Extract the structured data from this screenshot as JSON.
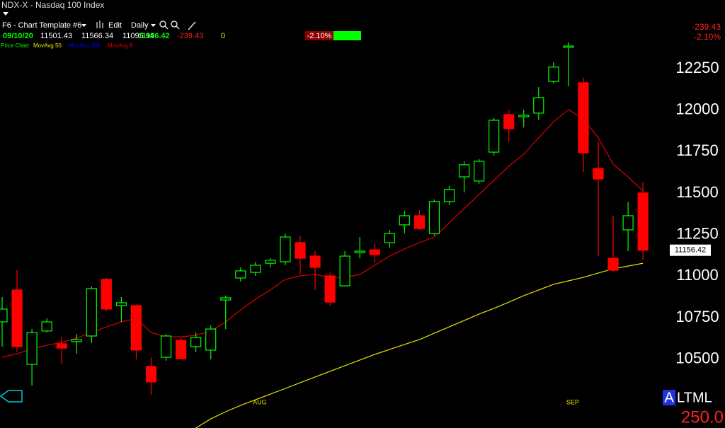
{
  "toolbar": {
    "symbol": "NDX-X - Nasdaq 100 Index",
    "template": "F6 - Chart Template #6",
    "edit": "Edit",
    "period": "Daily"
  },
  "header": {
    "date": "09/10/20",
    "open": 11501.43,
    "high": 11566.34,
    "low": 11095.94,
    "close": 11156.42,
    "change": -239.43,
    "volume": 0,
    "change_pct": {
      "value": -2.1,
      "label": "-2.10%"
    }
  },
  "studies": {
    "price": "Price Chart"
  },
  "corner": {
    "first": "A",
    "rest": "LTML",
    "scale": {
      "value": 250,
      "label": "250.0"
    }
  },
  "chart_data": {
    "type": "candlestick",
    "up_color": "#00ff00",
    "down_color": "#ff0000",
    "categories": [
      null,
      null,
      null,
      null,
      null,
      null,
      null,
      null,
      null,
      null,
      null,
      null,
      null,
      null,
      null,
      null,
      null,
      "AUG",
      null,
      null,
      null,
      null,
      null,
      null,
      null,
      null,
      null,
      null,
      null,
      null,
      null,
      null,
      null,
      null,
      null,
      null,
      null,
      null,
      "SEP",
      null,
      null,
      null,
      null,
      null
    ],
    "open": [
      10725,
      10917,
      10469,
      10670,
      10593,
      10606,
      10640,
      10981,
      10823,
      10823,
      10457,
      10512,
      10614,
      10576,
      10555,
      10857,
      10989,
      11023,
      11078,
      11087,
      11202,
      11121,
      11002,
      10942,
      11142,
      11159,
      11202,
      11309,
      11364,
      11257,
      11449,
      11598,
      11573,
      11747,
      11973,
      11960,
      11982,
      12173,
      12378,
      12165,
      11649,
      11108,
      11279,
      11501.43
    ],
    "high": [
      10874,
      11036,
      10682,
      10746,
      10635,
      10652,
      10938,
      10989,
      10874,
      10831,
      10512,
      10652,
      10627,
      10661,
      10704,
      10883,
      11053,
      11087,
      11108,
      11257,
      11245,
      11151,
      11023,
      11151,
      11236,
      11194,
      11279,
      11394,
      11398,
      11462,
      11543,
      11692,
      11705,
      11952,
      12003,
      12003,
      12139,
      12288,
      12408,
      12195,
      11811,
      11364,
      11449,
      11566.34
    ],
    "low": [
      10576,
      10546,
      10342,
      10661,
      10469,
      10533,
      10597,
      10789,
      10725,
      10499,
      10286,
      10491,
      10499,
      10542,
      10499,
      10682,
      10968,
      11002,
      11053,
      11066,
      11010,
      10917,
      10823,
      10938,
      11108,
      11078,
      11172,
      11257,
      11279,
      11245,
      11428,
      11504,
      11556,
      11726,
      11811,
      11896,
      11939,
      12161,
      12143,
      11628,
      11121,
      11023,
      11151,
      11095.94
    ],
    "close": [
      10802,
      10576,
      10661,
      10725,
      10567,
      10618,
      10925,
      10802,
      10840,
      10555,
      10363,
      10640,
      10503,
      10631,
      10682,
      10870,
      11032,
      11066,
      11096,
      11236,
      11108,
      11053,
      10844,
      11121,
      11151,
      11130,
      11257,
      11364,
      11287,
      11449,
      11522,
      11671,
      11692,
      11939,
      11888,
      11969,
      12075,
      12259,
      12386,
      11743,
      11585,
      11036,
      11364,
      11156.42
    ],
    "series": [
      {
        "name": "MovAvg 50",
        "color": "#e6e600",
        "values": [
          null,
          null,
          null,
          null,
          null,
          null,
          null,
          null,
          null,
          null,
          null,
          null,
          null,
          10086,
          10141,
          10184,
          10222,
          10256,
          10290,
          10324,
          10359,
          10393,
          10427,
          10461,
          10495,
          10529,
          10559,
          10589,
          10618,
          10657,
          10695,
          10733,
          10772,
          10806,
          10844,
          10883,
          10917,
          10951,
          10972,
          10993,
          11019,
          11044,
          11061,
          11078
        ]
      },
      {
        "name": "MovAvg 200",
        "color": "#0000ff",
        "values": [
          null,
          null,
          null,
          null,
          null,
          null,
          null,
          null,
          null,
          null,
          null,
          null,
          null,
          null,
          null,
          null,
          null,
          null,
          null,
          null,
          null,
          null,
          null,
          null,
          null,
          null,
          null,
          null,
          null,
          null,
          null,
          null,
          null,
          null,
          null,
          null,
          null,
          null,
          null,
          null,
          null,
          null,
          null,
          null
        ]
      },
      {
        "name": "MovAvg 8",
        "color": "#dd0000",
        "values": [
          10512,
          10533,
          10563,
          10584,
          10601,
          10627,
          10661,
          10695,
          10725,
          10746,
          10661,
          10635,
          10635,
          10644,
          10670,
          10725,
          10797,
          10861,
          10917,
          10981,
          11002,
          11010,
          10993,
          10993,
          11010,
          11066,
          11121,
          11164,
          11202,
          11236,
          11321,
          11407,
          11492,
          11577,
          11662,
          11735,
          11833,
          11930,
          12003,
          11948,
          11833,
          11675,
          11598,
          11513
        ]
      }
    ],
    "last_price": 11156.42,
    "ylim": [
      10086,
      12663
    ],
    "yticks": [
      10500,
      10750,
      11000,
      11250,
      11500,
      11750,
      12000,
      12250
    ],
    "grid": false
  }
}
